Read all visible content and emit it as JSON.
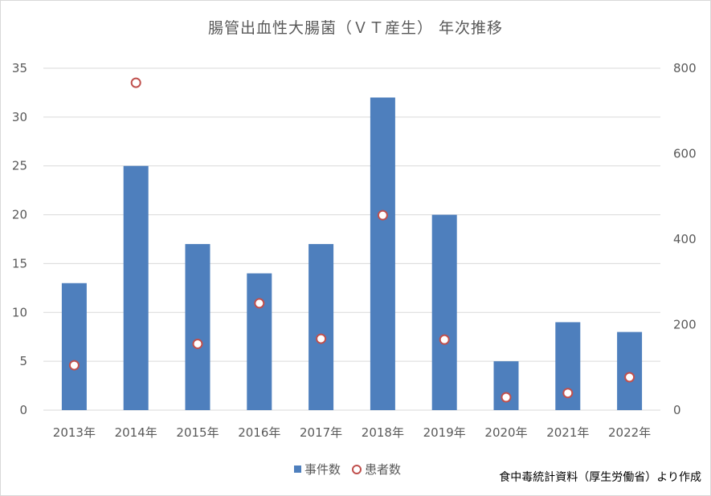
{
  "chart_data": {
    "type": "bar",
    "title": "腸管出血性大腸菌（ＶＴ産生） 年次推移",
    "categories": [
      "2013年",
      "2014年",
      "2015年",
      "2016年",
      "2017年",
      "2018年",
      "2019年",
      "2020年",
      "2021年",
      "2022年"
    ],
    "series": [
      {
        "name": "事件数",
        "type": "bar",
        "axis": "left",
        "color": "#4e7fbd",
        "values": [
          13,
          25,
          17,
          14,
          17,
          32,
          20,
          5,
          9,
          8
        ]
      },
      {
        "name": "患者数",
        "type": "scatter",
        "axis": "right",
        "color": "#c0504d",
        "values": [
          105,
          766,
          155,
          250,
          167,
          456,
          165,
          30,
          40,
          77
        ]
      }
    ],
    "y_left": {
      "min": 0,
      "max": 35,
      "ticks": [
        "0",
        "5",
        "10",
        "15",
        "20",
        "25",
        "30",
        "35"
      ]
    },
    "y_right": {
      "min": 0,
      "max": 800,
      "ticks": [
        "0",
        "200",
        "400",
        "600",
        "800"
      ]
    },
    "grid": true,
    "legend_position": "bottom"
  },
  "legend": {
    "bar_label": "事件数",
    "dot_label": "患者数"
  },
  "source_note": "食中毒統計資料（厚生労働省）より作成"
}
